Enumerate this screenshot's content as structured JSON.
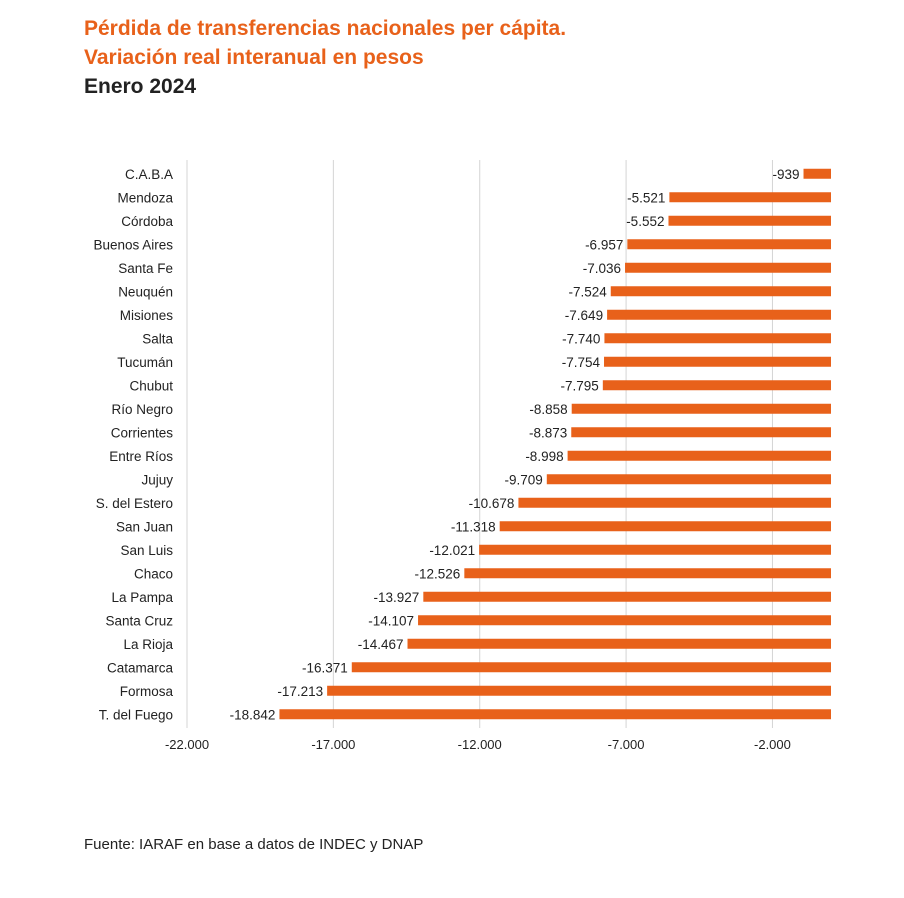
{
  "title_line1": "Pérdida de transferencias nacionales per cápita.",
  "title_line2": "Variación real interanual en pesos",
  "subtitle": "Enero 2024",
  "source": "Fuente: IARAF en base a datos de INDEC y DNAP",
  "colors": {
    "bar": "#e8611a",
    "title": "#e8611a",
    "text": "#222222",
    "grid": "#d4d4d4"
  },
  "chart_data": {
    "type": "bar",
    "orientation": "horizontal",
    "categories": [
      "C.A.B.A",
      "Mendoza",
      "Córdoba",
      "Buenos Aires",
      "Santa Fe",
      "Neuquén",
      "Misiones",
      "Salta",
      "Tucumán",
      "Chubut",
      "Río Negro",
      "Corrientes",
      "Entre Ríos",
      "Jujuy",
      "S. del Estero",
      "San Juan",
      "San Luis",
      "Chaco",
      "La Pampa",
      "Santa Cruz",
      "La Rioja",
      "Catamarca",
      "Formosa",
      "T. del Fuego"
    ],
    "values": [
      -939,
      -5521,
      -5552,
      -6957,
      -7036,
      -7524,
      -7649,
      -7740,
      -7754,
      -7795,
      -8858,
      -8873,
      -8998,
      -9709,
      -10678,
      -11318,
      -12021,
      -12526,
      -13927,
      -14107,
      -14467,
      -16371,
      -17213,
      -18842
    ],
    "value_labels": [
      "-939",
      "-5.521",
      "-5.552",
      "-6.957",
      "-7.036",
      "-7.524",
      "-7.649",
      "-7.740",
      "-7.754",
      "-7.795",
      "-8.858",
      "-8.873",
      "-8.998",
      "-9.709",
      "-10.678",
      "-11.318",
      "-12.021",
      "-12.526",
      "-13.927",
      "-14.107",
      "-14.467",
      "-16.371",
      "-17.213",
      "-18.842"
    ],
    "xlim": [
      -22000,
      0
    ],
    "xticks": [
      -22000,
      -17000,
      -12000,
      -7000,
      -2000
    ],
    "xtick_labels": [
      "-22.000",
      "-17.000",
      "-12.000",
      "-7.000",
      "-2.000"
    ],
    "grid": true,
    "legend": "none"
  }
}
